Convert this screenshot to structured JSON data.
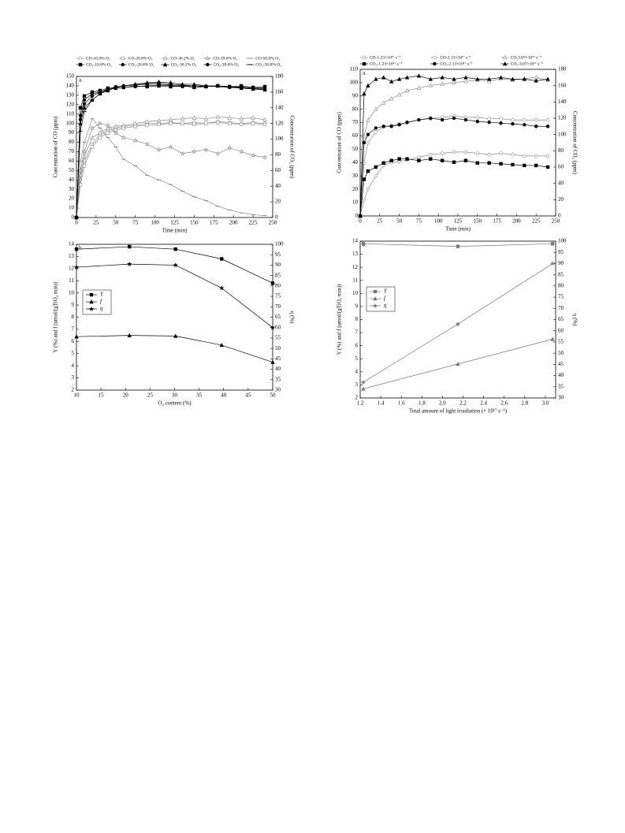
{
  "chart_data": [
    {
      "type": "line",
      "label": "a.",
      "legend": "top",
      "xlabel": "Time (min)",
      "ylabel": "Concentration of CO (ppm)",
      "y2label": "Concentration of CO₂ (ppm)",
      "xlim": [
        0,
        250
      ],
      "xticks": [
        0,
        25,
        50,
        75,
        100,
        125,
        150,
        175,
        200,
        225,
        250
      ],
      "ylim": [
        0,
        150
      ],
      "yticks": [
        0,
        10,
        20,
        30,
        40,
        50,
        60,
        70,
        80,
        90,
        100,
        110,
        120,
        130,
        140,
        150
      ],
      "y2lim": [
        0,
        180
      ],
      "y2ticks": [
        0,
        20,
        40,
        60,
        80,
        100,
        120,
        140,
        160,
        180
      ],
      "x": [
        0,
        5,
        10,
        20,
        30,
        40,
        50,
        60,
        75,
        90,
        105,
        120,
        135,
        150,
        165,
        180,
        195,
        210,
        225,
        240
      ],
      "series": [
        {
          "name": "CO-10.0% O₂",
          "color": "#888888",
          "marker": "circle",
          "filled": false,
          "values": [
            0,
            40,
            60,
            78,
            88,
            92,
            95,
            97,
            98,
            100,
            100,
            101,
            100,
            101,
            100,
            102,
            101,
            100,
            101,
            100
          ]
        },
        {
          "name": "CO-20.8% O₂",
          "color": "#888888",
          "marker": "square",
          "filled": false,
          "values": [
            0,
            35,
            55,
            75,
            85,
            90,
            93,
            95,
            97,
            98,
            99,
            100,
            100,
            99,
            100,
            101,
            100,
            99,
            100,
            99
          ]
        },
        {
          "name": "CO-30.2% O₂",
          "color": "#888888",
          "marker": "triangle",
          "filled": false,
          "values": [
            0,
            45,
            65,
            85,
            90,
            95,
            97,
            98,
            100,
            102,
            103,
            104,
            105,
            106,
            105,
            107,
            106,
            105,
            106,
            104
          ]
        },
        {
          "name": "CO-39.6% O₂",
          "color": "#888888",
          "marker": "star",
          "filled": false,
          "values": [
            0,
            50,
            70,
            95,
            100,
            98,
            90,
            85,
            82,
            78,
            72,
            75,
            68,
            70,
            72,
            68,
            74,
            70,
            66,
            64
          ]
        },
        {
          "name": "CO-50.0% O₂",
          "color": "#888888",
          "marker": "dash",
          "filled": false,
          "values": [
            0,
            60,
            80,
            105,
            95,
            85,
            75,
            62,
            55,
            45,
            40,
            35,
            28,
            22,
            18,
            12,
            8,
            5,
            3,
            2
          ]
        },
        {
          "name": "CO₂-10.0% O₂",
          "color": "#000000",
          "marker": "square",
          "filled": true,
          "axis": "y2",
          "values": [
            0,
            140,
            155,
            160,
            162,
            165,
            165,
            166,
            168,
            167,
            168,
            167,
            168,
            166,
            167,
            168,
            167,
            168,
            166,
            167
          ]
        },
        {
          "name": "CO₂-20.8% O₂",
          "color": "#000000",
          "marker": "circle",
          "filled": true,
          "axis": "y2",
          "values": [
            0,
            130,
            150,
            158,
            160,
            163,
            165,
            166,
            167,
            168,
            169,
            168,
            167,
            168,
            167,
            168,
            166,
            167,
            165,
            166
          ]
        },
        {
          "name": "CO₂-30.2% O₂",
          "color": "#000000",
          "marker": "triangle",
          "filled": true,
          "axis": "y2",
          "values": [
            0,
            120,
            140,
            150,
            158,
            162,
            166,
            168,
            170,
            172,
            173,
            172,
            170,
            170,
            168,
            168,
            167,
            165,
            164,
            163
          ]
        },
        {
          "name": "CO₂-39.6% O₂",
          "color": "#000000",
          "marker": "circle",
          "filled": true,
          "axis": "y2",
          "values": [
            0,
            125,
            145,
            155,
            160,
            164,
            167,
            168,
            169,
            170,
            170,
            169,
            168,
            168,
            167,
            168,
            167,
            166,
            165,
            164
          ]
        },
        {
          "name": "CO₂-50.0% O₂",
          "color": "#000000",
          "marker": "dash",
          "filled": true,
          "axis": "y2",
          "values": [
            0,
            110,
            135,
            150,
            158,
            163,
            166,
            168,
            170,
            171,
            172,
            170,
            169,
            168,
            168,
            167,
            166,
            165,
            164,
            163
          ]
        }
      ]
    },
    {
      "type": "line",
      "label": "b.",
      "legend": "inside-left",
      "xlabel": "O₂ content (%)",
      "ylabel": "Y (%) and f (umol/(gTiO₂ min))",
      "y2label": "η (%)",
      "xlim": [
        10,
        50
      ],
      "xticks": [
        10,
        15,
        20,
        25,
        30,
        35,
        40,
        45,
        50
      ],
      "ylim": [
        2,
        14
      ],
      "yticks": [
        2,
        3,
        4,
        5,
        6,
        7,
        8,
        9,
        10,
        11,
        12,
        13,
        14
      ],
      "y2lim": [
        30,
        100
      ],
      "y2ticks": [
        30,
        35,
        40,
        45,
        50,
        55,
        60,
        65,
        70,
        75,
        80,
        85,
        90,
        95,
        100
      ],
      "x": [
        10,
        20.8,
        30.2,
        39.6,
        50
      ],
      "series": [
        {
          "name": "Y",
          "color": "#000000",
          "marker": "square",
          "filled": true,
          "values": [
            13.6,
            13.8,
            13.6,
            12.8,
            10.8
          ]
        },
        {
          "name": "f",
          "color": "#000000",
          "marker": "triangle",
          "filled": true,
          "values": [
            6.4,
            6.5,
            6.45,
            5.7,
            4.3
          ]
        },
        {
          "name": "η",
          "color": "#000000",
          "marker": "star",
          "filled": true,
          "axis": "y2",
          "values": [
            89,
            90.5,
            90,
            79,
            60
          ]
        }
      ]
    },
    {
      "type": "line",
      "label": "a.",
      "legend": "top",
      "xlabel": "Time (min)",
      "ylabel": "Concentration of CO (ppm)",
      "y2label": "Concentration of CO₂ (ppm)",
      "xlim": [
        0,
        250
      ],
      "xticks": [
        0,
        25,
        50,
        75,
        100,
        125,
        150,
        175,
        200,
        225,
        250
      ],
      "ylim": [
        0,
        110
      ],
      "yticks": [
        0,
        10,
        20,
        30,
        40,
        50,
        60,
        70,
        80,
        90,
        100,
        110
      ],
      "y2lim": [
        0,
        180
      ],
      "y2ticks": [
        0,
        20,
        40,
        60,
        80,
        100,
        120,
        140,
        160,
        180
      ],
      "x": [
        0,
        5,
        10,
        20,
        30,
        40,
        50,
        60,
        75,
        90,
        105,
        120,
        135,
        150,
        165,
        180,
        195,
        210,
        225,
        240
      ],
      "series": [
        {
          "name": "CO-1.23×10¹⁷ s⁻¹",
          "color": "#888888",
          "marker": "circle",
          "filled": false,
          "values": [
            0,
            12,
            20,
            30,
            38,
            40,
            41,
            42,
            44,
            46,
            47,
            48,
            48,
            47,
            46,
            47,
            46,
            45,
            45,
            45
          ]
        },
        {
          "name": "CO-2.13×10¹⁷ s⁻¹",
          "color": "#888888",
          "marker": "circle",
          "filled": false,
          "values": [
            0,
            40,
            55,
            63,
            67,
            68,
            69,
            70,
            72,
            73,
            74,
            75,
            74,
            74,
            73,
            73,
            72,
            72,
            72,
            72
          ]
        },
        {
          "name": "CO-3.07×10¹⁷ s⁻¹",
          "color": "#888888",
          "marker": "triangle",
          "filled": false,
          "values": [
            0,
            60,
            72,
            80,
            85,
            88,
            91,
            94,
            96,
            98,
            99,
            100,
            101,
            102,
            101,
            103,
            102,
            103,
            104,
            102
          ]
        },
        {
          "name": "CO₂-1.23×10¹⁷ s⁻¹",
          "color": "#000000",
          "marker": "square",
          "filled": true,
          "axis": "y2",
          "values": [
            0,
            45,
            55,
            60,
            65,
            68,
            70,
            70,
            68,
            70,
            68,
            66,
            68,
            65,
            65,
            64,
            63,
            62,
            62,
            60
          ]
        },
        {
          "name": "CO₂-2.13×10¹⁷ s⁻¹",
          "color": "#000000",
          "marker": "circle",
          "filled": true,
          "axis": "y2",
          "values": [
            0,
            90,
            100,
            108,
            110,
            110,
            112,
            115,
            118,
            120,
            118,
            120,
            118,
            116,
            115,
            114,
            113,
            112,
            110,
            110
          ]
        },
        {
          "name": "CO₂-3.07×10¹⁷ s⁻¹",
          "color": "#000000",
          "marker": "triangle",
          "filled": true,
          "axis": "y2",
          "values": [
            0,
            150,
            160,
            168,
            170,
            165,
            168,
            170,
            172,
            168,
            170,
            168,
            170,
            168,
            168,
            170,
            168,
            168,
            166,
            168
          ]
        }
      ]
    },
    {
      "type": "line",
      "label": "b.",
      "legend": "inside-left",
      "xlabel": "Total amount of light irradiation (× 10¹⁷ s⁻¹)",
      "ylabel": "Y (%) and f (umol/(gTiO₂ min))",
      "y2label": "η (%)",
      "xlim": [
        1.2,
        3.1
      ],
      "xticks": [
        1.2,
        1.4,
        1.6,
        1.8,
        {
          "value": 2,
          "label": "2.0"
        },
        2.2,
        2.4,
        2.6,
        2.8,
        {
          "value": 3,
          "label": "3.0"
        }
      ],
      "ylim": [
        2,
        14
      ],
      "yticks": [
        2,
        3,
        4,
        5,
        6,
        7,
        8,
        9,
        10,
        11,
        12,
        13,
        14
      ],
      "y2lim": [
        30,
        100
      ],
      "y2ticks": [
        30,
        35,
        40,
        45,
        50,
        55,
        60,
        65,
        70,
        75,
        80,
        85,
        90,
        95,
        100
      ],
      "x": [
        1.23,
        2.15,
        3.07
      ],
      "series": [
        {
          "name": "Y",
          "color": "#777777",
          "marker": "square",
          "filled": true,
          "values": [
            13.8,
            13.6,
            13.8
          ]
        },
        {
          "name": "f",
          "color": "#777777",
          "marker": "triangle",
          "filled": true,
          "values": [
            2.7,
            4.6,
            6.5
          ]
        },
        {
          "name": "η",
          "color": "#777777",
          "marker": "star",
          "filled": true,
          "axis": "y2",
          "values": [
            37,
            63,
            90
          ]
        }
      ]
    }
  ]
}
